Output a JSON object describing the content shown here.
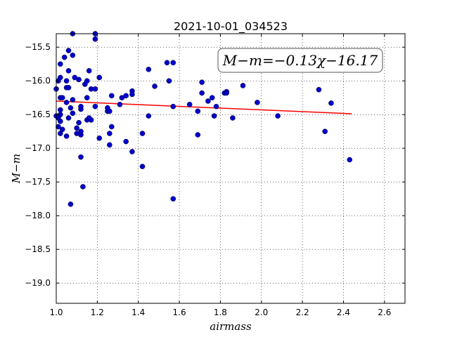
{
  "chart_data": {
    "type": "scatter",
    "title": "2021-10-01_034523",
    "xlabel": "airmass",
    "ylabel": "M−m",
    "xlim": [
      1.0,
      2.7
    ],
    "ylim": [
      -19.3,
      -15.3
    ],
    "y_inverted": true,
    "grid": true,
    "x_ticks": [
      "1.0",
      "1.2",
      "1.4",
      "1.6",
      "1.8",
      "2.0",
      "2.2",
      "2.4",
      "2.6"
    ],
    "x_tick_values": [
      1.0,
      1.2,
      1.4,
      1.6,
      1.8,
      2.0,
      2.2,
      2.4,
      2.6
    ],
    "y_ticks": [
      "−15.5",
      "−16.0",
      "−16.5",
      "−17.0",
      "−17.5",
      "−18.0",
      "−18.5",
      "−19.0"
    ],
    "y_tick_values": [
      -15.5,
      -16.0,
      -16.5,
      -17.0,
      -17.5,
      -18.0,
      -18.5,
      -19.0
    ],
    "annotation": "M−m=−0.13χ−16.17",
    "annotation_position": "top-right",
    "fit": {
      "slope": -0.13,
      "intercept": -16.17,
      "x_range": [
        1.0,
        2.44
      ],
      "color": "#ff0000"
    },
    "point_color": "#0000cc",
    "points": [
      [
        1.0,
        -16.12
      ],
      [
        1.0,
        -16.52
      ],
      [
        1.01,
        -16.0
      ],
      [
        1.01,
        -16.55
      ],
      [
        1.01,
        -16.68
      ],
      [
        1.02,
        -16.5
      ],
      [
        1.02,
        -16.43
      ],
      [
        1.02,
        -16.25
      ],
      [
        1.02,
        -15.95
      ],
      [
        1.02,
        -15.75
      ],
      [
        1.02,
        -16.78
      ],
      [
        1.02,
        -16.6
      ],
      [
        1.03,
        -16.72
      ],
      [
        1.03,
        -16.25
      ],
      [
        1.04,
        -15.65
      ],
      [
        1.05,
        -16.1
      ],
      [
        1.05,
        -16.0
      ],
      [
        1.05,
        -16.32
      ],
      [
        1.05,
        -16.82
      ],
      [
        1.06,
        -16.55
      ],
      [
        1.06,
        -15.55
      ],
      [
        1.06,
        -15.85
      ],
      [
        1.06,
        -16.1
      ],
      [
        1.07,
        -16.4
      ],
      [
        1.07,
        -17.83
      ],
      [
        1.08,
        -16.28
      ],
      [
        1.08,
        -16.48
      ],
      [
        1.08,
        -15.62
      ],
      [
        1.08,
        -15.3
      ],
      [
        1.09,
        -15.95
      ],
      [
        1.1,
        -16.78
      ],
      [
        1.1,
        -16.7
      ],
      [
        1.11,
        -15.98
      ],
      [
        1.11,
        -16.62
      ],
      [
        1.12,
        -16.8
      ],
      [
        1.12,
        -16.75
      ],
      [
        1.12,
        -17.13
      ],
      [
        1.12,
        -16.42
      ],
      [
        1.12,
        -16.38
      ],
      [
        1.13,
        -17.57
      ],
      [
        1.14,
        -16.05
      ],
      [
        1.15,
        -16.0
      ],
      [
        1.15,
        -16.25
      ],
      [
        1.15,
        -16.58
      ],
      [
        1.16,
        -16.55
      ],
      [
        1.16,
        -15.85
      ],
      [
        1.17,
        -16.12
      ],
      [
        1.17,
        -16.58
      ],
      [
        1.19,
        -16.38
      ],
      [
        1.19,
        -16.12
      ],
      [
        1.19,
        -15.3
      ],
      [
        1.19,
        -15.38
      ],
      [
        1.21,
        -15.95
      ],
      [
        1.21,
        -16.85
      ],
      [
        1.25,
        -16.45
      ],
      [
        1.25,
        -16.4
      ],
      [
        1.26,
        -16.45
      ],
      [
        1.26,
        -16.78
      ],
      [
        1.26,
        -16.95
      ],
      [
        1.27,
        -16.22
      ],
      [
        1.27,
        -16.68
      ],
      [
        1.31,
        -16.35
      ],
      [
        1.32,
        -16.25
      ],
      [
        1.34,
        -16.22
      ],
      [
        1.34,
        -16.9
      ],
      [
        1.37,
        -16.15
      ],
      [
        1.37,
        -16.2
      ],
      [
        1.37,
        -17.05
      ],
      [
        1.42,
        -16.78
      ],
      [
        1.42,
        -17.27
      ],
      [
        1.45,
        -16.52
      ],
      [
        1.45,
        -15.83
      ],
      [
        1.48,
        -16.08
      ],
      [
        1.54,
        -15.73
      ],
      [
        1.55,
        -16.0
      ],
      [
        1.57,
        -17.75
      ],
      [
        1.57,
        -16.38
      ],
      [
        1.57,
        -15.73
      ],
      [
        1.65,
        -16.35
      ],
      [
        1.69,
        -16.8
      ],
      [
        1.69,
        -16.45
      ],
      [
        1.71,
        -16.02
      ],
      [
        1.71,
        -16.18
      ],
      [
        1.74,
        -16.3
      ],
      [
        1.76,
        -16.25
      ],
      [
        1.77,
        -16.52
      ],
      [
        1.78,
        -16.38
      ],
      [
        1.82,
        -16.18
      ],
      [
        1.83,
        -16.16
      ],
      [
        1.83,
        -16.18
      ],
      [
        1.86,
        -16.55
      ],
      [
        1.91,
        -16.07
      ],
      [
        1.98,
        -16.32
      ],
      [
        2.08,
        -16.52
      ],
      [
        2.28,
        -16.13
      ],
      [
        2.31,
        -16.75
      ],
      [
        2.34,
        -16.33
      ],
      [
        2.43,
        -17.17
      ]
    ]
  }
}
